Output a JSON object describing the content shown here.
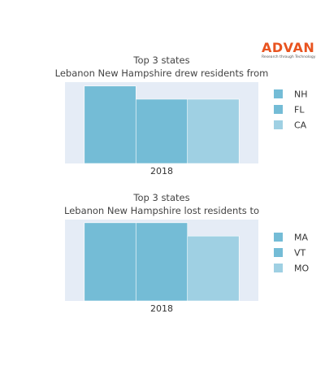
{
  "logo": {
    "word": "ADVAN",
    "tagline": "Research through Technology",
    "color": "#e8531f"
  },
  "chart_data": [
    {
      "type": "bar",
      "title": "Top 3 states",
      "subtitle": "Lebanon New Hampshire drew residents from",
      "categories": [
        "2018"
      ],
      "series": [
        {
          "name": "NH",
          "values": [
            100
          ],
          "color": "#74bcd6"
        },
        {
          "name": "FL",
          "values": [
            83
          ],
          "color": "#74bcd6"
        },
        {
          "name": "CA",
          "values": [
            83
          ],
          "color": "#9fd0e3"
        }
      ],
      "ylim": [
        0,
        105
      ],
      "grid": false,
      "legend": "right"
    },
    {
      "type": "bar",
      "title": "Top 3 states",
      "subtitle": "Lebanon New Hampshire lost residents to",
      "categories": [
        "2018"
      ],
      "series": [
        {
          "name": "MA",
          "values": [
            100
          ],
          "color": "#74bcd6"
        },
        {
          "name": "VT",
          "values": [
            100
          ],
          "color": "#74bcd6"
        },
        {
          "name": "MO",
          "values": [
            83
          ],
          "color": "#9fd0e3"
        }
      ],
      "ylim": [
        0,
        104
      ],
      "grid": false,
      "legend": "right"
    }
  ]
}
